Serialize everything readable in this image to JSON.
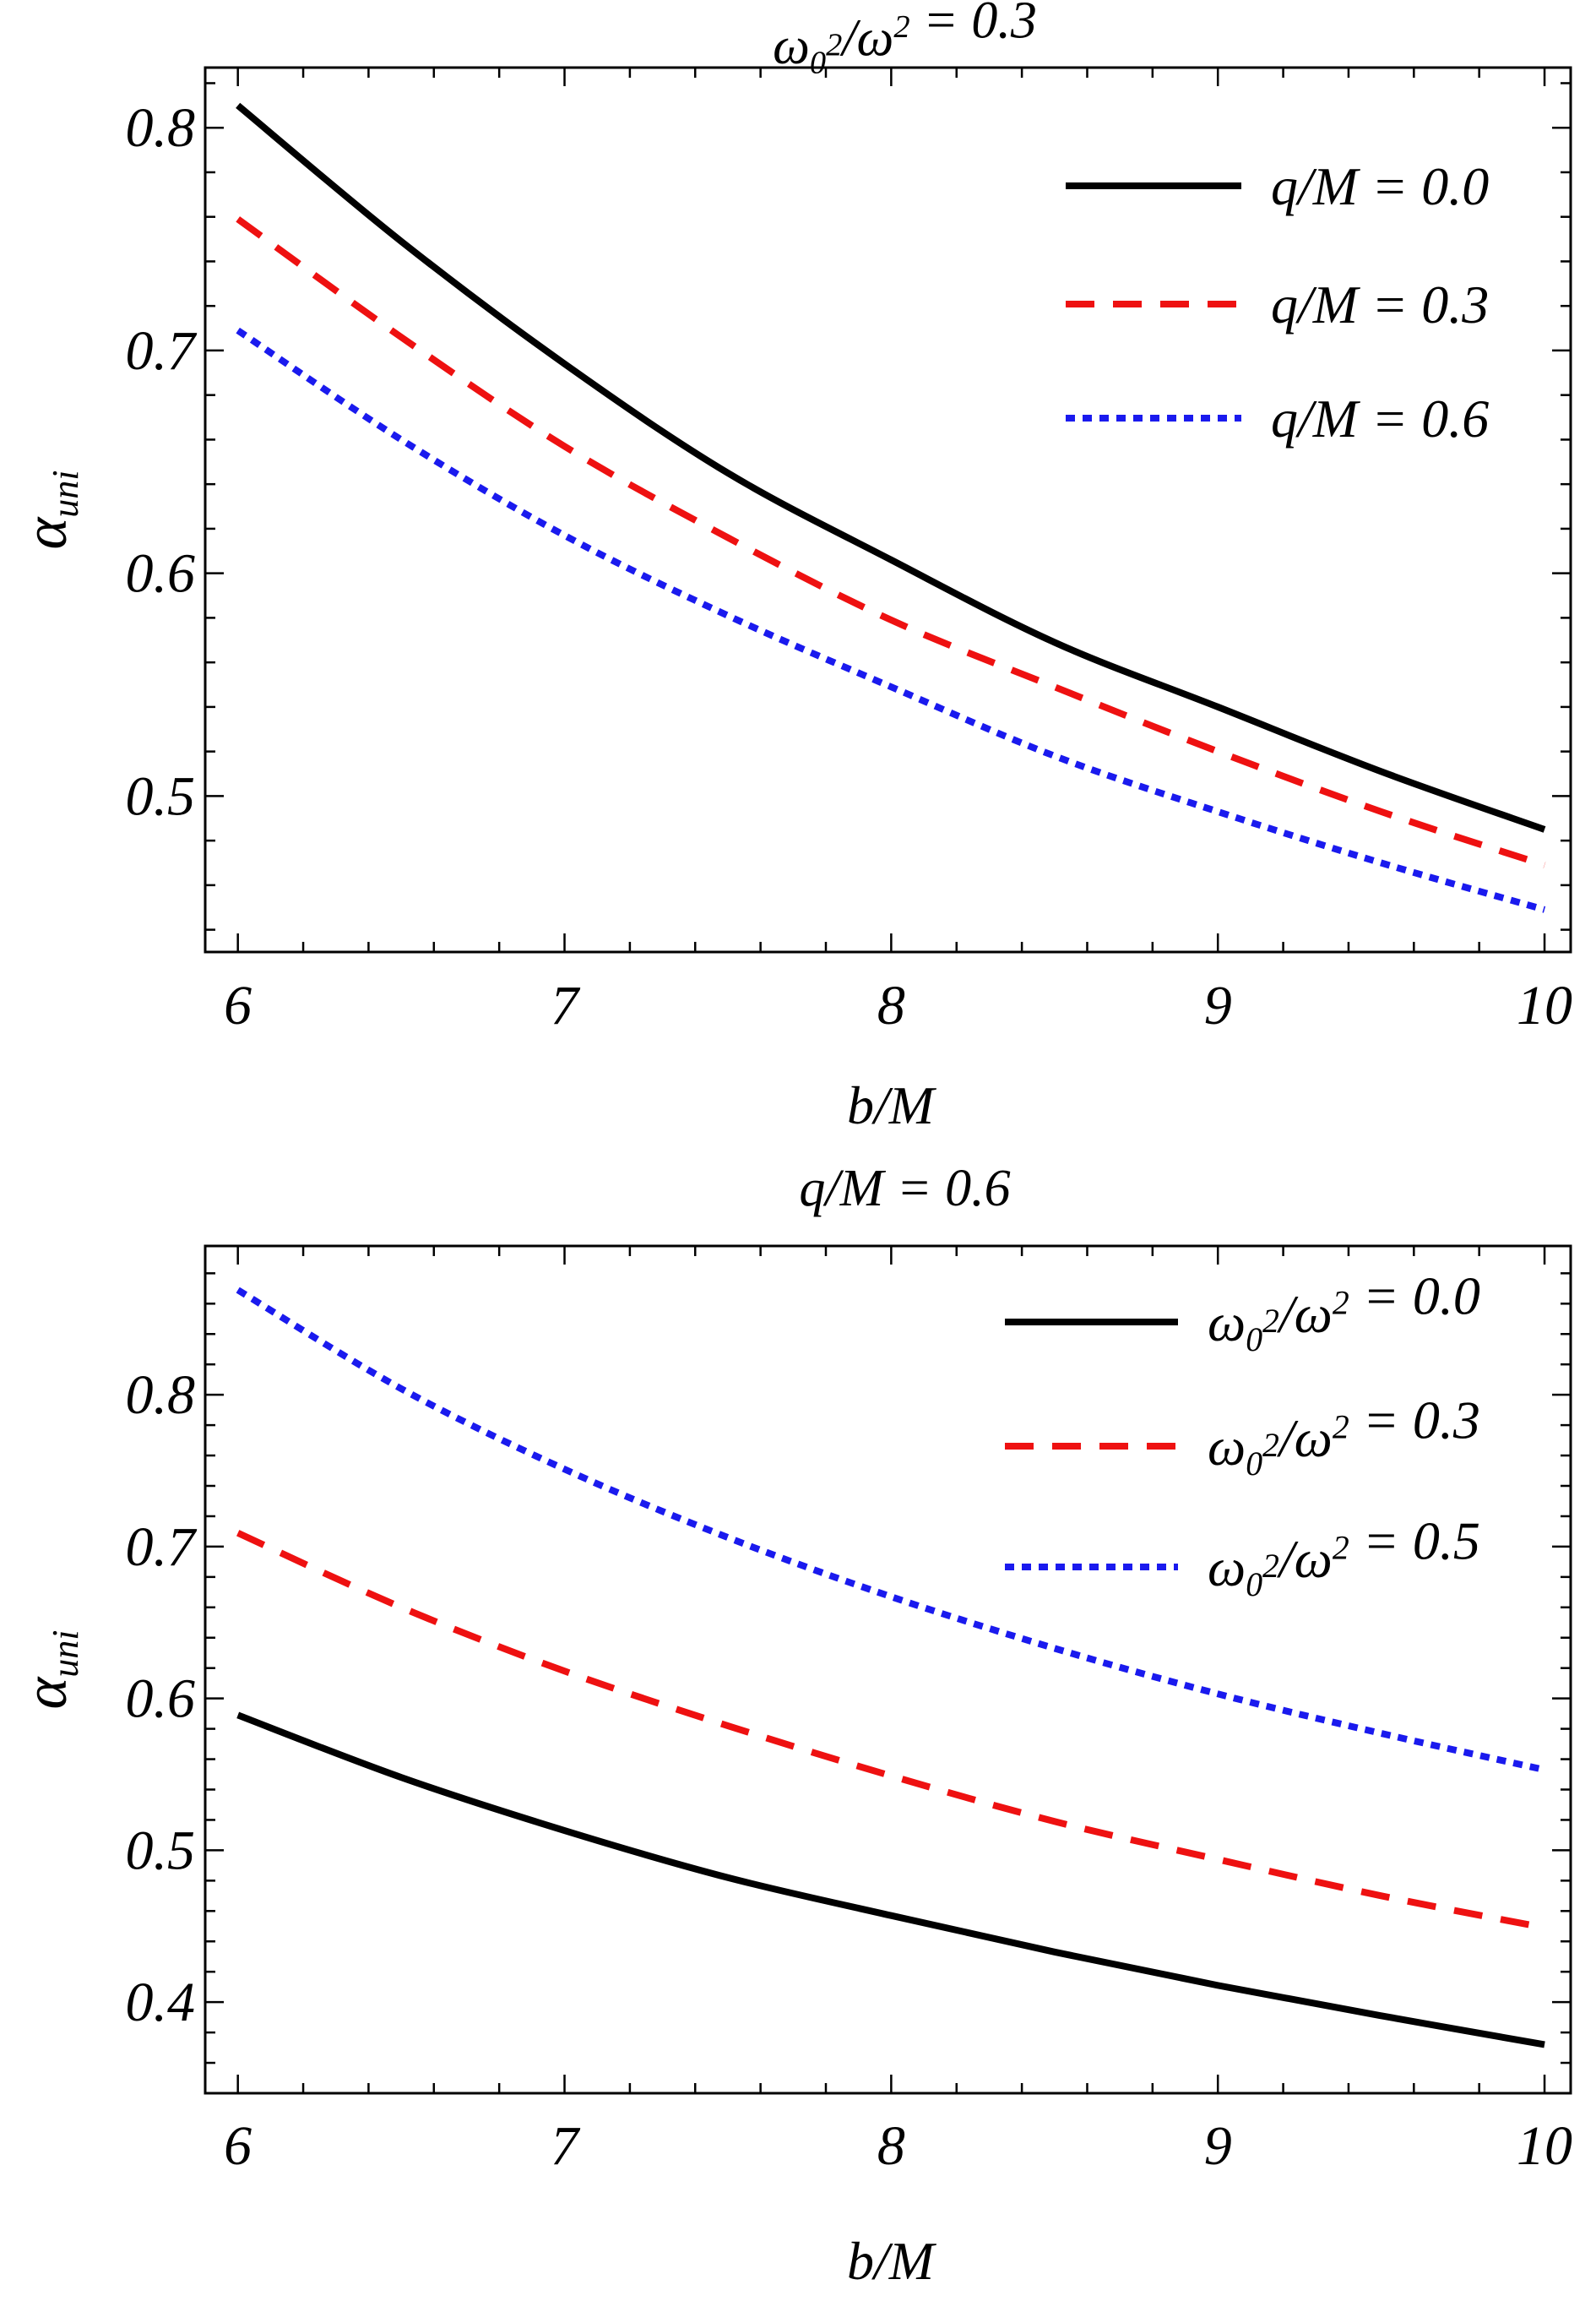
{
  "chart_data": [
    {
      "type": "line",
      "title": "ω₀²/ω² = 0.3",
      "xlabel": "b/M",
      "ylabel": "αuni",
      "xlim": [
        5.9,
        10.08
      ],
      "ylim": [
        0.43,
        0.827
      ],
      "xticks": [
        6,
        7,
        8,
        9,
        10
      ],
      "xtick_labels": [
        "6",
        "7",
        "8",
        "9",
        "10"
      ],
      "yticks": [
        0.5,
        0.6,
        0.7,
        0.8
      ],
      "ytick_labels": [
        "0.5",
        "0.6",
        "0.7",
        "0.8"
      ],
      "grid": false,
      "legend_position": "top-right",
      "x": [
        6,
        6.5,
        7,
        7.5,
        8,
        8.5,
        9,
        9.5,
        10
      ],
      "series": [
        {
          "name": "q/M = 0.0",
          "style": "solid",
          "color": "#000000",
          "values": [
            0.81,
            0.749,
            0.694,
            0.645,
            0.606,
            0.569,
            0.54,
            0.511,
            0.485
          ]
        },
        {
          "name": "q/M = 0.3",
          "style": "dashed",
          "color": "#ee1111",
          "values": [
            0.759,
            0.706,
            0.657,
            0.616,
            0.579,
            0.549,
            0.52,
            0.493,
            0.469
          ]
        },
        {
          "name": "q/M = 0.6",
          "style": "dotted",
          "color": "#1a1aee",
          "values": [
            0.709,
            0.66,
            0.617,
            0.581,
            0.549,
            0.518,
            0.493,
            0.47,
            0.449
          ]
        }
      ]
    },
    {
      "type": "line",
      "title": "q/M = 0.6",
      "xlabel": "b/M",
      "ylabel": "αuni",
      "xlim": [
        5.9,
        10.08
      ],
      "ylim": [
        0.34,
        0.898
      ],
      "xticks": [
        6,
        7,
        8,
        9,
        10
      ],
      "xtick_labels": [
        "6",
        "7",
        "8",
        "9",
        "10"
      ],
      "yticks": [
        0.4,
        0.5,
        0.6,
        0.7,
        0.8
      ],
      "ytick_labels": [
        "0.4",
        "0.5",
        "0.6",
        "0.7",
        "0.8"
      ],
      "grid": false,
      "legend_position": "top-right",
      "x": [
        6,
        6.5,
        7,
        7.5,
        8,
        8.5,
        9,
        9.5,
        10
      ],
      "series": [
        {
          "name": "ω₀²/ω² = 0.0",
          "style": "solid",
          "color": "#000000",
          "values": [
            0.589,
            0.548,
            0.513,
            0.482,
            0.457,
            0.433,
            0.411,
            0.391,
            0.372
          ]
        },
        {
          "name": "ω₀²/ω² = 0.3",
          "style": "dashed",
          "color": "#ee1111",
          "values": [
            0.709,
            0.66,
            0.618,
            0.582,
            0.549,
            0.519,
            0.494,
            0.47,
            0.449
          ]
        },
        {
          "name": "ω₀²/ω² = 0.5",
          "style": "dotted",
          "color": "#1a1aee",
          "values": [
            0.869,
            0.804,
            0.751,
            0.706,
            0.667,
            0.633,
            0.603,
            0.577,
            0.553
          ]
        }
      ]
    }
  ]
}
